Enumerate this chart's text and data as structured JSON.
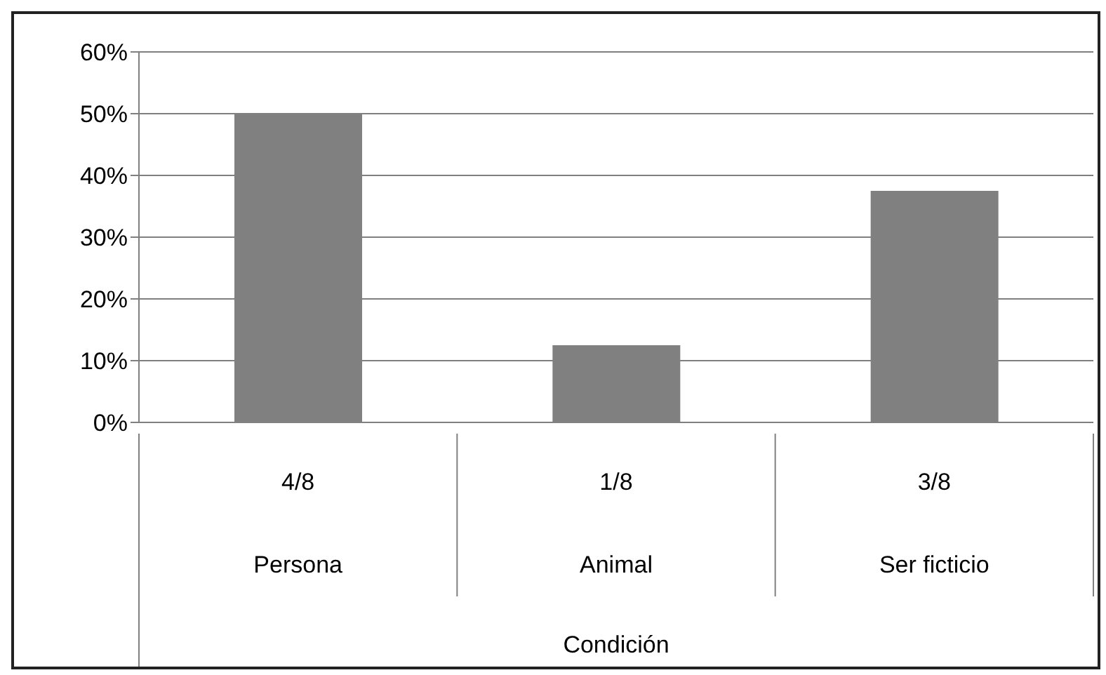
{
  "chart_data": {
    "type": "bar",
    "xlabel": "Condición",
    "categories": [
      "Persona",
      "Animal",
      "Ser ficticio"
    ],
    "values": [
      50,
      12.5,
      37.5
    ],
    "annotations": [
      "4/8",
      "1/8",
      "3/8"
    ],
    "color": "#808080",
    "ylim": [
      0,
      60
    ],
    "yticks": [
      {
        "value": 0,
        "label": "0%"
      },
      {
        "value": 10,
        "label": "10%"
      },
      {
        "value": 20,
        "label": "20%"
      },
      {
        "value": 30,
        "label": "30%"
      },
      {
        "value": 40,
        "label": "40%"
      },
      {
        "value": 50,
        "label": "50%"
      },
      {
        "value": 60,
        "label": "60%"
      }
    ],
    "grid": "y"
  }
}
